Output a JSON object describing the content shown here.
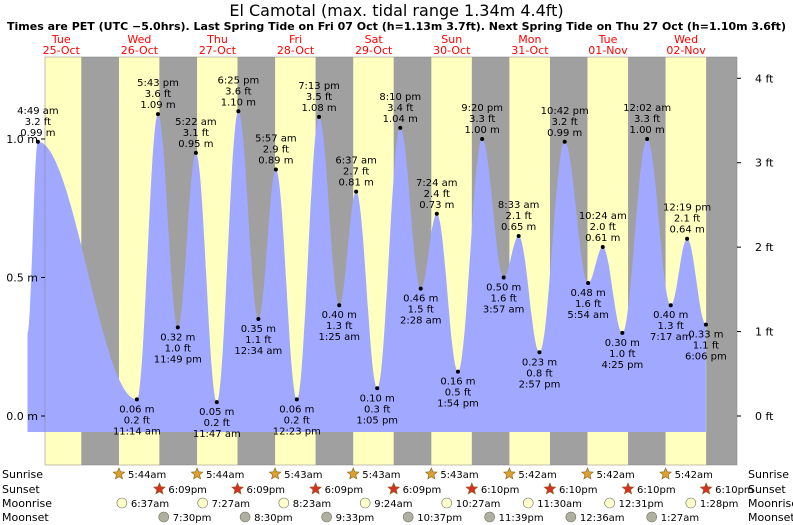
{
  "header": {
    "title": "El Camotal (max. tidal range 1.34m 4.4ft)",
    "subtitle": "Times are PET (UTC −5.0hrs). Last Spring Tide on Fri 07 Oct (h=1.13m 3.7ft). Next Spring Tide on Thu 27 Oct (h=1.10m 3.6ft)"
  },
  "chart_data": {
    "type": "area",
    "title": "El Camotal (max. tidal range 1.34m 4.4ft)",
    "x_axis": {
      "unit": "hours",
      "range_label_start": "Tue 25-Oct",
      "range_label_end": "Wed 02-Nov"
    },
    "y_left": {
      "unit": "m",
      "ylim": [
        -0.27,
        1.4
      ],
      "ticks": [
        {
          "v": 0.0,
          "label": "0.0 m"
        },
        {
          "v": 0.5,
          "label": "0.5 m"
        },
        {
          "v": 1.0,
          "label": "1.0 m"
        }
      ]
    },
    "y_right": {
      "unit": "ft",
      "ticks": [
        {
          "ft": 0,
          "label": "0 ft"
        },
        {
          "ft": 1,
          "label": "1 ft"
        },
        {
          "ft": 2,
          "label": "2 ft"
        },
        {
          "ft": 3,
          "label": "3 ft"
        },
        {
          "ft": 4,
          "label": "4 ft"
        }
      ]
    },
    "days": [
      {
        "dow": "Tue",
        "date": "25-Oct"
      },
      {
        "dow": "Wed",
        "date": "26-Oct"
      },
      {
        "dow": "Thu",
        "date": "27-Oct"
      },
      {
        "dow": "Fri",
        "date": "28-Oct"
      },
      {
        "dow": "Sat",
        "date": "29-Oct"
      },
      {
        "dow": "Sun",
        "date": "30-Oct"
      },
      {
        "dow": "Mon",
        "date": "31-Oct"
      },
      {
        "dow": "Tue",
        "date": "01-Nov"
      },
      {
        "dow": "Wed",
        "date": "02-Nov"
      }
    ],
    "tides": [
      {
        "day": 0,
        "time": "4:49 am",
        "ft": "3.2 ft",
        "m": 0.99,
        "type": "high"
      },
      {
        "day": 1,
        "time": "11:14 am",
        "ft": "0.2 ft",
        "m": 0.06,
        "type": "low"
      },
      {
        "day": 1,
        "time": "5:43 pm",
        "ft": "3.6 ft",
        "m": 1.09,
        "type": "high"
      },
      {
        "day": 1,
        "time": "11:49 pm",
        "ft": "1.0 ft",
        "m": 0.32,
        "type": "low"
      },
      {
        "day": 2,
        "time": "5:22 am",
        "ft": "3.1 ft",
        "m": 0.95,
        "type": "high"
      },
      {
        "day": 2,
        "time": "11:47 am",
        "ft": "0.2 ft",
        "m": 0.05,
        "type": "low"
      },
      {
        "day": 2,
        "time": "6:25 pm",
        "ft": "3.6 ft",
        "m": 1.1,
        "type": "high"
      },
      {
        "day": 3,
        "time": "12:34 am",
        "ft": "1.1 ft",
        "m": 0.35,
        "type": "low"
      },
      {
        "day": 3,
        "time": "5:57 am",
        "ft": "2.9 ft",
        "m": 0.89,
        "type": "high"
      },
      {
        "day": 3,
        "time": "12:23 pm",
        "ft": "0.2 ft",
        "m": 0.06,
        "type": "low"
      },
      {
        "day": 3,
        "time": "7:13 pm",
        "ft": "3.5 ft",
        "m": 1.08,
        "type": "high"
      },
      {
        "day": 4,
        "time": "1:25 am",
        "ft": "1.3 ft",
        "m": 0.4,
        "type": "low"
      },
      {
        "day": 4,
        "time": "6:37 am",
        "ft": "2.7 ft",
        "m": 0.81,
        "type": "high"
      },
      {
        "day": 4,
        "time": "1:05 pm",
        "ft": "0.3 ft",
        "m": 0.1,
        "type": "low"
      },
      {
        "day": 4,
        "time": "8:10 pm",
        "ft": "3.4 ft",
        "m": 1.04,
        "type": "high"
      },
      {
        "day": 5,
        "time": "2:28 am",
        "ft": "1.5 ft",
        "m": 0.46,
        "type": "low"
      },
      {
        "day": 5,
        "time": "7:24 am",
        "ft": "2.4 ft",
        "m": 0.73,
        "type": "high"
      },
      {
        "day": 5,
        "time": "1:54 pm",
        "ft": "0.5 ft",
        "m": 0.16,
        "type": "low"
      },
      {
        "day": 5,
        "time": "9:20 pm",
        "ft": "3.3 ft",
        "m": 1.0,
        "type": "high"
      },
      {
        "day": 6,
        "time": "3:57 am",
        "ft": "1.6 ft",
        "m": 0.5,
        "type": "low"
      },
      {
        "day": 6,
        "time": "8:33 am",
        "ft": "2.1 ft",
        "m": 0.65,
        "type": "high"
      },
      {
        "day": 6,
        "time": "2:57 pm",
        "ft": "0.8 ft",
        "m": 0.23,
        "type": "low"
      },
      {
        "day": 6,
        "time": "10:42 pm",
        "ft": "3.2 ft",
        "m": 0.99,
        "type": "high"
      },
      {
        "day": 7,
        "time": "5:54 am",
        "ft": "1.6 ft",
        "m": 0.48,
        "type": "low"
      },
      {
        "day": 7,
        "time": "10:24 am",
        "ft": "2.0 ft",
        "m": 0.61,
        "type": "high"
      },
      {
        "day": 7,
        "time": "4:25 pm",
        "ft": "1.0 ft",
        "m": 0.3,
        "type": "low"
      },
      {
        "day": 8,
        "time": "12:02 am",
        "ft": "3.3 ft",
        "m": 1.0,
        "type": "high"
      },
      {
        "day": 8,
        "time": "7:17 am",
        "ft": "1.3 ft",
        "m": 0.4,
        "type": "low"
      },
      {
        "day": 8,
        "time": "12:19 pm",
        "ft": "2.1 ft",
        "m": 0.64,
        "type": "high"
      },
      {
        "day": 8,
        "time": "6:06 pm",
        "ft": "1.1 ft",
        "m": 0.33,
        "type": "low"
      }
    ],
    "daylight": [
      {
        "day": 0,
        "sunrise": "5:44am",
        "sunset": "6:09pm"
      },
      {
        "day": 1,
        "sunrise": "5:44am",
        "sunset": "6:09pm"
      },
      {
        "day": 2,
        "sunrise": "5:44am",
        "sunset": "6:09pm"
      },
      {
        "day": 3,
        "sunrise": "5:43am",
        "sunset": "6:09pm"
      },
      {
        "day": 4,
        "sunrise": "5:43am",
        "sunset": "6:09pm"
      },
      {
        "day": 5,
        "sunrise": "5:43am",
        "sunset": "6:10pm"
      },
      {
        "day": 6,
        "sunrise": "5:42am",
        "sunset": "6:10pm"
      },
      {
        "day": 7,
        "sunrise": "5:42am",
        "sunset": "6:10pm"
      },
      {
        "day": 8,
        "sunrise": "5:42am",
        "sunset": "6:10pm"
      }
    ],
    "sunrise_labels": [
      {
        "day": 1,
        "text": "5:44am"
      },
      {
        "day": 2,
        "text": "5:44am"
      },
      {
        "day": 3,
        "text": "5:43am"
      },
      {
        "day": 4,
        "text": "5:43am"
      },
      {
        "day": 5,
        "text": "5:43am"
      },
      {
        "day": 6,
        "text": "5:42am"
      },
      {
        "day": 7,
        "text": "5:42am"
      },
      {
        "day": 8,
        "text": "5:42am"
      }
    ],
    "sunset_labels": [
      {
        "day": 1,
        "text": "6:09pm"
      },
      {
        "day": 2,
        "text": "6:09pm"
      },
      {
        "day": 3,
        "text": "6:09pm"
      },
      {
        "day": 4,
        "text": "6:09pm"
      },
      {
        "day": 5,
        "text": "6:10pm"
      },
      {
        "day": 6,
        "text": "6:10pm"
      },
      {
        "day": 7,
        "text": "6:10pm"
      },
      {
        "day": 8,
        "text": "6:10pm"
      }
    ],
    "moonrise_labels": [
      {
        "day": 1,
        "text": "6:37am"
      },
      {
        "day": 2,
        "text": "7:27am"
      },
      {
        "day": 3,
        "text": "8:23am"
      },
      {
        "day": 4,
        "text": "9:24am"
      },
      {
        "day": 5,
        "text": "10:27am"
      },
      {
        "day": 6,
        "text": "11:30am"
      },
      {
        "day": 7,
        "text": "12:31pm"
      },
      {
        "day": 8,
        "text": "1:28pm"
      }
    ],
    "moonset_labels": [
      {
        "day": 1,
        "text": "7:30pm"
      },
      {
        "day": 2,
        "text": "8:30pm"
      },
      {
        "day": 3,
        "text": "9:33pm"
      },
      {
        "day": 4,
        "text": "10:37pm"
      },
      {
        "day": 5,
        "text": "11:39pm"
      },
      {
        "day": 7,
        "text": "12:36am"
      },
      {
        "day": 8,
        "text": "1:27am"
      }
    ],
    "row_labels": {
      "sunrise": "Sunrise",
      "sunset": "Sunset",
      "moonrise": "Moonrise",
      "moonset": "Moonset"
    },
    "colors": {
      "night": "#a0a0a0",
      "day": "#ffffc0",
      "water": "#a0a8ff",
      "date_text": "#ff0000",
      "sun_icon": "#e0a030",
      "sunset_icon": "#d83020",
      "moonrise_icon": "#ffffcc",
      "moonset_icon": "#b0b0a0"
    }
  }
}
